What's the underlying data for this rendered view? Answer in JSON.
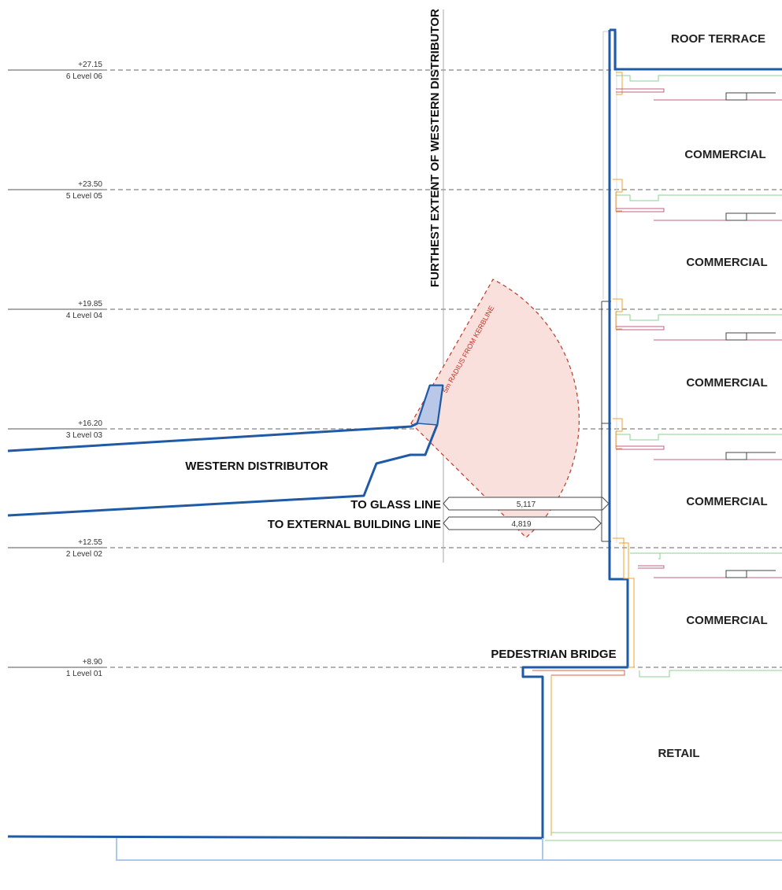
{
  "levels": [
    {
      "elevation": "+27.15",
      "name": "6 Level 06"
    },
    {
      "elevation": "+23.50",
      "name": "5 Level 05"
    },
    {
      "elevation": "+19.85",
      "name": "4 Level 04"
    },
    {
      "elevation": "+16.20",
      "name": "3 Level 03"
    },
    {
      "elevation": "+12.55",
      "name": "2 Level 02"
    },
    {
      "elevation": "+8.90",
      "name": "1 Level 01"
    }
  ],
  "rooms": {
    "roof_terrace": "ROOF TERRACE",
    "commercial_1": "COMMERCIAL",
    "commercial_2": "COMMERCIAL",
    "commercial_3": "COMMERCIAL",
    "commercial_4": "COMMERCIAL",
    "commercial_5": "COMMERCIAL",
    "retail": "RETAIL"
  },
  "labels": {
    "furthest_extent": "FURTHEST EXTENT OF WESTERN DISTRIBUTOR",
    "radius_note": "5m RADIUS FROM KERBLINE",
    "western_distributor": "WESTERN DISTRIBUTOR",
    "pedestrian_bridge": "PEDESTRIAN BRIDGE",
    "to_glass_line": "TO GLASS LINE",
    "to_external_building_line": "TO EXTERNAL BUILDING LINE"
  },
  "dimensions": {
    "glass_line": "5,117",
    "external_building_line": "4,819"
  },
  "colors": {
    "structure": "#1f5aa6",
    "radius_fill": "#f9e0dc",
    "radius_stroke": "#c0392b",
    "facade_orange": "#f0a030",
    "slab_green": "#8fd08f",
    "slab_pink": "#c06080",
    "grid": "#555555",
    "pale_blue": "#a9c8ea"
  }
}
